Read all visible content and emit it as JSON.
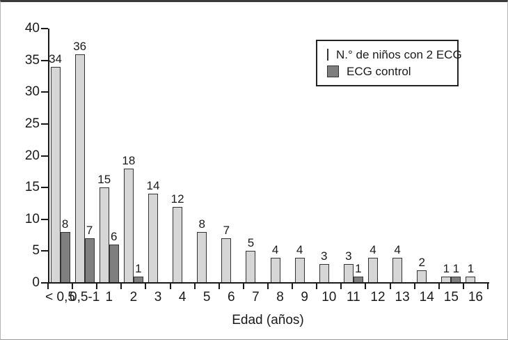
{
  "chart_data": {
    "type": "bar",
    "title": "",
    "xlabel": "Edad (años)",
    "ylabel": "",
    "categories": [
      "< 0,5",
      "0,5-1",
      "1",
      "2",
      "3",
      "4",
      "5",
      "6",
      "7",
      "8",
      "9",
      "10",
      "11",
      "12",
      "13",
      "14",
      "15",
      "16"
    ],
    "series": [
      {
        "name": "N.° de niños con 2 ECG",
        "color": "#d6d6d6",
        "values": [
          34,
          36,
          15,
          18,
          14,
          12,
          8,
          7,
          5,
          4,
          4,
          3,
          3,
          4,
          4,
          2,
          1,
          1
        ]
      },
      {
        "name": "ECG control",
        "color": "#7f7f7f",
        "values": [
          8,
          7,
          6,
          1,
          0,
          0,
          0,
          0,
          0,
          0,
          0,
          0,
          1,
          0,
          0,
          0,
          1,
          0
        ]
      }
    ],
    "ylim": [
      0,
      40
    ],
    "yticks": [
      0,
      5,
      10,
      15,
      20,
      25,
      30,
      35,
      40
    ],
    "grid": false,
    "bar_value_labels": true,
    "legend_position": "top-right",
    "colors": {
      "bar_border": "#333333",
      "axis": "#1a1a1a",
      "background": "#ffffff"
    }
  }
}
